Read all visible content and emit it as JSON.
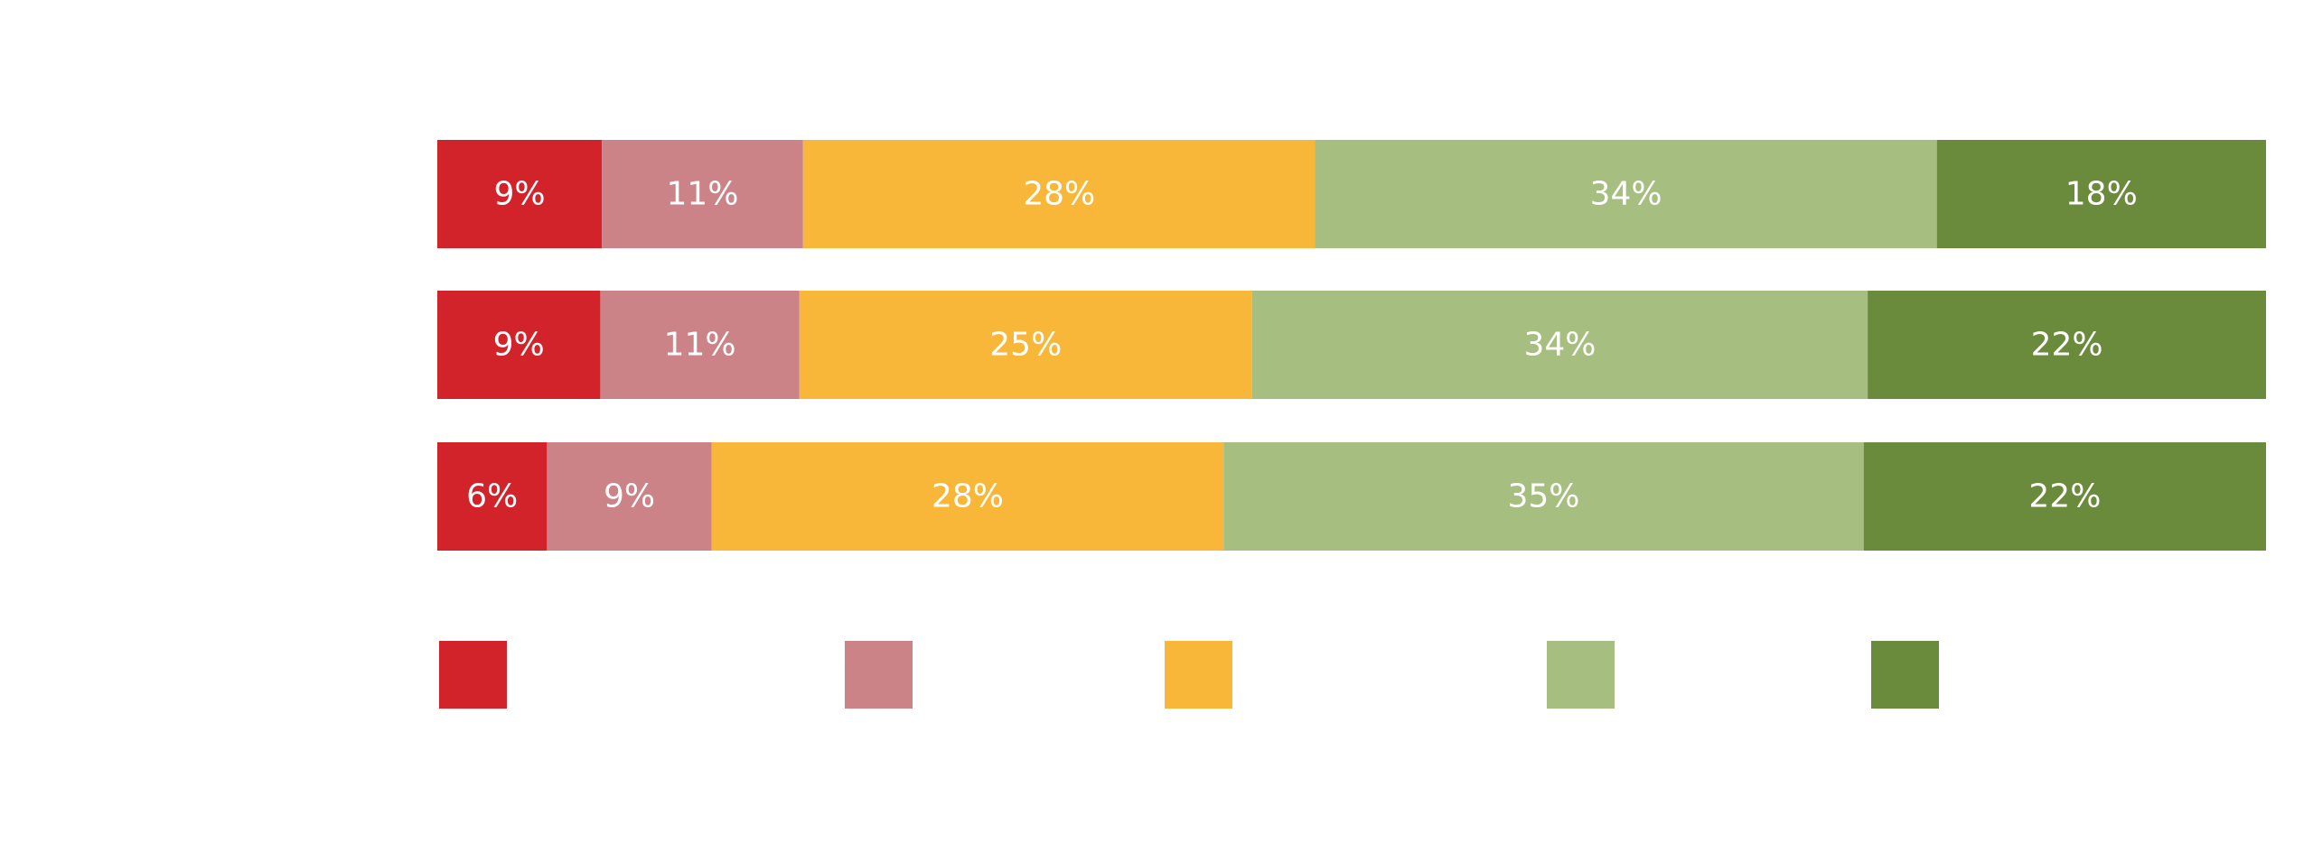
{
  "chart_data": {
    "type": "bar",
    "orientation": "horizontal",
    "stacked": true,
    "normalized": true,
    "title": "",
    "xlabel": "",
    "ylabel": "",
    "categories": [
      "",
      "",
      ""
    ],
    "series": [
      {
        "color": "#d3232a",
        "values": [
          9,
          9,
          6
        ],
        "labels": [
          "9%",
          "9%",
          "6%"
        ]
      },
      {
        "color": "#cc8387",
        "values": [
          11,
          11,
          9
        ],
        "labels": [
          "11%",
          "11%",
          "9%"
        ]
      },
      {
        "color": "#f8b738",
        "values": [
          28,
          25,
          28
        ],
        "labels": [
          "28%",
          "25%",
          "28%"
        ]
      },
      {
        "color": "#a6be7f",
        "values": [
          34,
          34,
          35
        ],
        "labels": [
          "34%",
          "34%",
          "35%"
        ]
      },
      {
        "color": "#6b8b3c",
        "values": [
          18,
          22,
          22
        ],
        "labels": [
          "18%",
          "22%",
          "22%"
        ]
      }
    ],
    "xlim": [
      0,
      100
    ],
    "grid": false,
    "axes_visible": false,
    "legend": {
      "position": "bottom",
      "entries": [
        "",
        "",
        "",
        "",
        ""
      ]
    }
  }
}
